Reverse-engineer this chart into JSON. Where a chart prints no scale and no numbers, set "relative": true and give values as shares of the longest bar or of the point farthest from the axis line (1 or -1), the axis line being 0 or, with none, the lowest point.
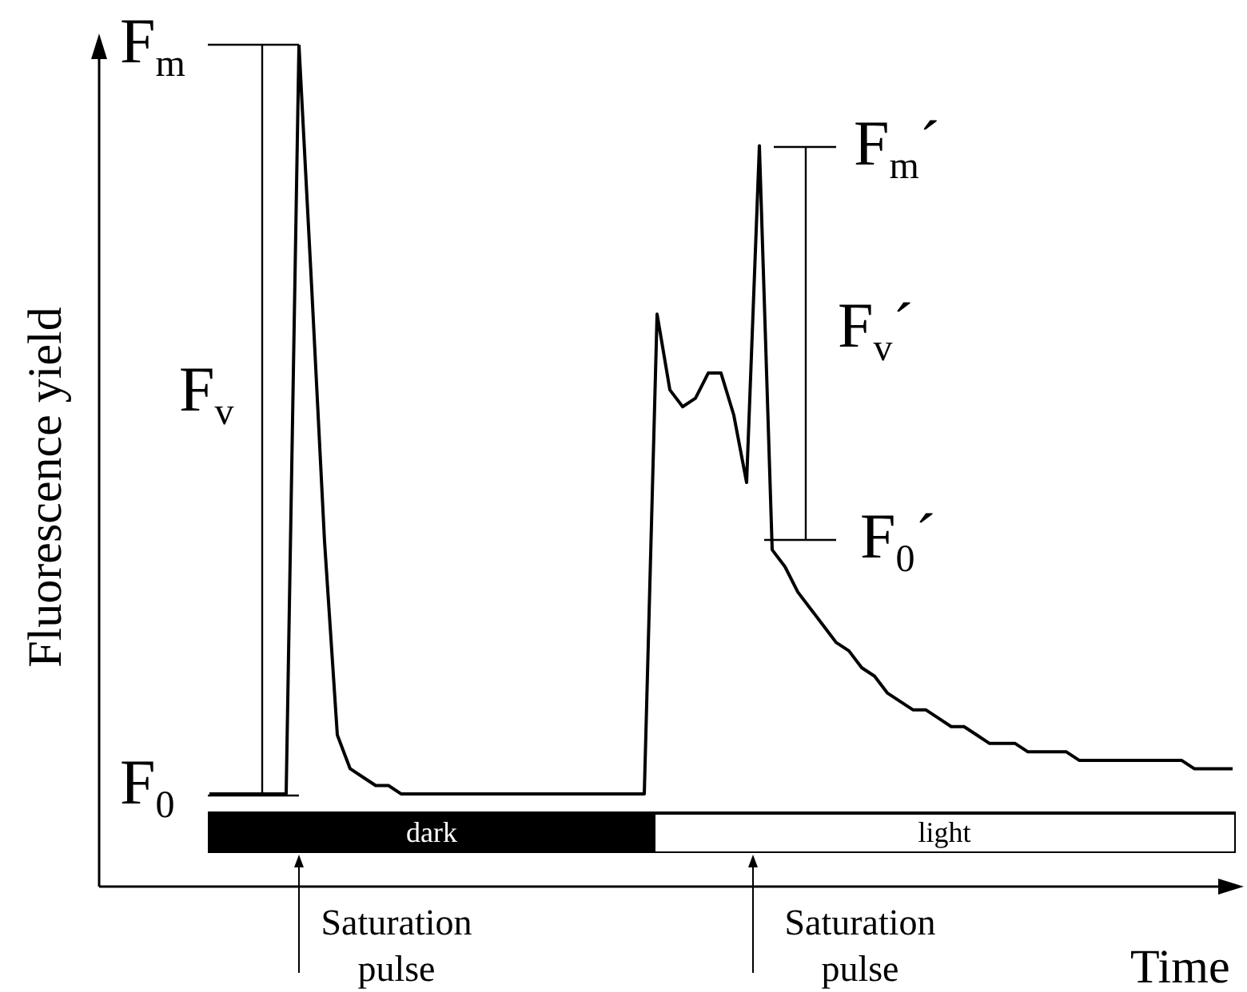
{
  "chart_data": {
    "type": "line",
    "relative": true,
    "xlabel": "Time",
    "ylabel": "Fluorescence yield",
    "categories": [
      null,
      null,
      null,
      null,
      null,
      null,
      null,
      null,
      null,
      null,
      null,
      null,
      null,
      null,
      null,
      null,
      null,
      null,
      null,
      null,
      null,
      null,
      null,
      null,
      null,
      null,
      null,
      null,
      null,
      null,
      null,
      null,
      null,
      null,
      null,
      null,
      null,
      null,
      null,
      null,
      null,
      null,
      null,
      null,
      null,
      null,
      null,
      null,
      null,
      null,
      null,
      null,
      null,
      null,
      null,
      null,
      null,
      null,
      null,
      null,
      null,
      null,
      null,
      null,
      null,
      null,
      null,
      null,
      null,
      null,
      null,
      null,
      null,
      null,
      null,
      null,
      null,
      null,
      null,
      null,
      null
    ],
    "series": [
      {
        "color": "#000000",
        "values": [
          0.11,
          0.11,
          0.11,
          0.11,
          0.11,
          0.11,
          0.11,
          1.0,
          0.71,
          0.41,
          0.18,
          0.14,
          0.13,
          0.12,
          0.12,
          0.11,
          0.11,
          0.11,
          0.11,
          0.11,
          0.11,
          0.11,
          0.11,
          0.11,
          0.11,
          0.11,
          0.11,
          0.11,
          0.11,
          0.11,
          0.11,
          0.11,
          0.11,
          0.11,
          0.11,
          0.68,
          0.59,
          0.57,
          0.58,
          0.61,
          0.61,
          0.56,
          0.48,
          0.88,
          0.4,
          0.38,
          0.35,
          0.33,
          0.31,
          0.29,
          0.28,
          0.26,
          0.25,
          0.23,
          0.22,
          0.21,
          0.21,
          0.2,
          0.19,
          0.19,
          0.18,
          0.17,
          0.17,
          0.17,
          0.16,
          0.16,
          0.16,
          0.16,
          0.15,
          0.15,
          0.15,
          0.15,
          0.15,
          0.15,
          0.15,
          0.15,
          0.15,
          0.14,
          0.14,
          0.14,
          0.14
        ]
      }
    ],
    "annotations": [
      "F$_{m}$",
      "F$_{v}$",
      "F$_{0}$",
      "F$_{m}$´",
      "F$_{v}$´",
      "F$_{0}$´",
      "dark",
      "light",
      "Saturation pulse",
      "Saturation pulse"
    ]
  }
}
